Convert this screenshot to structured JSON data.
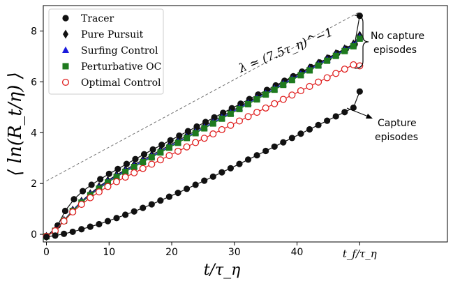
{
  "chart_data": {
    "type": "line",
    "xlabel": "t/τ_η",
    "ylabel": "⟨ ln(R_t/η) ⟩",
    "xlim": [
      -0.5,
      64
    ],
    "ylim": [
      -0.3,
      9.0
    ],
    "xticks": [
      0,
      10,
      20,
      30,
      40
    ],
    "yticks": [
      0,
      2,
      4,
      6,
      8
    ],
    "extra_xtick": {
      "x": 50,
      "label": "t_f/τ_η"
    },
    "legend_position": "top-left",
    "grid": false,
    "series": [
      {
        "name": "Tracer",
        "marker": "circle-filled",
        "color": "#111111",
        "x": [
          0,
          1.8,
          3,
          4.4,
          5.8,
          7.2,
          8.6,
          10,
          11.4,
          12.8,
          14.2,
          15.6,
          17,
          18.4,
          19.8,
          21.2,
          22.6,
          24,
          25.4,
          26.8,
          28.2,
          29.6,
          31,
          32.4,
          33.8,
          35.2,
          36.6,
          38,
          39.4,
          40.8,
          42.2,
          43.6,
          45,
          46.4,
          47.8,
          49.2,
          50
        ],
        "y": [
          -0.1,
          0.35,
          0.92,
          1.38,
          1.7,
          1.95,
          2.17,
          2.38,
          2.57,
          2.77,
          2.96,
          3.15,
          3.34,
          3.52,
          3.7,
          3.88,
          4.06,
          4.24,
          4.42,
          4.6,
          4.78,
          4.96,
          5.14,
          5.32,
          5.5,
          5.68,
          5.86,
          6.04,
          6.22,
          6.4,
          6.58,
          6.76,
          6.94,
          7.12,
          7.3,
          7.48,
          8.6
        ]
      },
      {
        "name": "Pure Pursuit",
        "marker": "diamond-filled",
        "color": "#111111",
        "x": [
          0,
          1.4,
          2.8,
          4.2,
          5.6,
          7,
          8.4,
          9.8,
          11.2,
          12.6,
          14,
          15.4,
          16.8,
          18.2,
          19.6,
          21,
          22.4,
          23.8,
          25.2,
          26.6,
          28,
          29.4,
          30.8,
          32.2,
          33.6,
          35,
          36.4,
          37.8,
          39.2,
          40.6,
          42,
          43.4,
          44.8,
          46.2,
          47.6,
          49,
          50
        ],
        "y": [
          -0.08,
          0.15,
          0.55,
          0.95,
          1.3,
          1.6,
          1.88,
          2.12,
          2.34,
          2.54,
          2.74,
          2.93,
          3.12,
          3.31,
          3.5,
          3.69,
          3.88,
          4.07,
          4.26,
          4.45,
          4.64,
          4.83,
          5.02,
          5.21,
          5.4,
          5.59,
          5.78,
          5.97,
          6.16,
          6.35,
          6.54,
          6.73,
          6.92,
          7.11,
          7.3,
          7.49,
          7.83
        ]
      },
      {
        "name": "Surfing Control",
        "marker": "triangle-filled",
        "color": "#1a1adc",
        "x": [
          0,
          1.4,
          2.8,
          4.2,
          5.6,
          7,
          8.4,
          9.8,
          11.2,
          12.6,
          14,
          15.4,
          16.8,
          18.2,
          19.6,
          21,
          22.4,
          23.8,
          25.2,
          26.6,
          28,
          29.4,
          30.8,
          32.2,
          33.6,
          35,
          36.4,
          37.8,
          39.2,
          40.6,
          42,
          43.4,
          44.8,
          46.2,
          47.6,
          49,
          50
        ],
        "y": [
          -0.08,
          0.15,
          0.55,
          0.94,
          1.28,
          1.57,
          1.84,
          2.08,
          2.3,
          2.5,
          2.69,
          2.88,
          3.07,
          3.26,
          3.45,
          3.64,
          3.83,
          4.02,
          4.21,
          4.4,
          4.59,
          4.78,
          4.97,
          5.16,
          5.35,
          5.54,
          5.73,
          5.92,
          6.11,
          6.3,
          6.49,
          6.68,
          6.87,
          7.06,
          7.25,
          7.44,
          7.76
        ]
      },
      {
        "name": "Perturbative OC",
        "marker": "square-filled",
        "color": "#1e7a1e",
        "x": [
          0,
          1.4,
          2.8,
          4.2,
          5.6,
          7,
          8.4,
          9.8,
          11.2,
          12.6,
          14,
          15.4,
          16.8,
          18.2,
          19.6,
          21,
          22.4,
          23.8,
          25.2,
          26.6,
          28,
          29.4,
          30.8,
          32.2,
          33.6,
          35,
          36.4,
          37.8,
          39.2,
          40.6,
          42,
          43.4,
          44.8,
          46.2,
          47.6,
          49,
          50
        ],
        "y": [
          -0.08,
          0.14,
          0.54,
          0.92,
          1.25,
          1.54,
          1.8,
          2.04,
          2.26,
          2.46,
          2.65,
          2.84,
          3.03,
          3.22,
          3.41,
          3.6,
          3.79,
          3.98,
          4.17,
          4.36,
          4.55,
          4.74,
          4.93,
          5.12,
          5.31,
          5.5,
          5.69,
          5.88,
          6.07,
          6.26,
          6.45,
          6.64,
          6.83,
          7.02,
          7.21,
          7.4,
          7.7
        ]
      },
      {
        "name": "Optimal Control",
        "marker": "circle-open",
        "color": "#e02020",
        "x": [
          0,
          1.4,
          2.8,
          4.2,
          5.6,
          7,
          8.4,
          9.8,
          11.2,
          12.6,
          14,
          15.4,
          16.8,
          18.2,
          19.6,
          21,
          22.4,
          23.8,
          25.2,
          26.6,
          28,
          29.4,
          30.8,
          32.2,
          33.6,
          35,
          36.4,
          37.8,
          39.2,
          40.6,
          42,
          43.4,
          44.8,
          46.2,
          47.6,
          49,
          50
        ],
        "y": [
          -0.08,
          0.14,
          0.52,
          0.88,
          1.18,
          1.44,
          1.67,
          1.88,
          2.07,
          2.25,
          2.42,
          2.59,
          2.76,
          2.93,
          3.1,
          3.27,
          3.44,
          3.61,
          3.78,
          3.95,
          4.12,
          4.29,
          4.46,
          4.63,
          4.8,
          4.97,
          5.14,
          5.31,
          5.48,
          5.65,
          5.82,
          5.99,
          6.16,
          6.33,
          6.5,
          6.67,
          6.63
        ]
      },
      {
        "name": "",
        "marker": "circle-filled",
        "color": "#111111",
        "x": [
          0,
          1.4,
          2.8,
          4.2,
          5.6,
          7,
          8.4,
          9.8,
          11.2,
          12.6,
          14,
          15.4,
          16.8,
          18.2,
          19.6,
          21,
          22.4,
          23.8,
          25.2,
          26.6,
          28,
          29.4,
          30.8,
          32.2,
          33.6,
          35,
          36.4,
          37.8,
          39.2,
          40.6,
          42,
          43.4,
          44.8,
          46.2,
          47.6,
          49,
          50
        ],
        "y": [
          -0.1,
          -0.05,
          0.02,
          0.1,
          0.2,
          0.3,
          0.4,
          0.52,
          0.64,
          0.77,
          0.9,
          1.04,
          1.18,
          1.33,
          1.48,
          1.63,
          1.79,
          1.95,
          2.11,
          2.27,
          2.44,
          2.6,
          2.77,
          2.94,
          3.11,
          3.28,
          3.45,
          3.62,
          3.79,
          3.96,
          4.13,
          4.3,
          4.47,
          4.64,
          4.81,
          4.98,
          5.62
        ]
      }
    ],
    "reference_line": {
      "x": [
        0,
        50
      ],
      "y": [
        2.1,
        8.75
      ],
      "style": "dashed",
      "color": "#777777"
    },
    "annotations": {
      "slope_label": "λ ≃ (7.5τ_η)^−1",
      "no_capture": [
        "No capture",
        "episodes"
      ],
      "capture": [
        "Capture",
        "episodes"
      ]
    }
  }
}
